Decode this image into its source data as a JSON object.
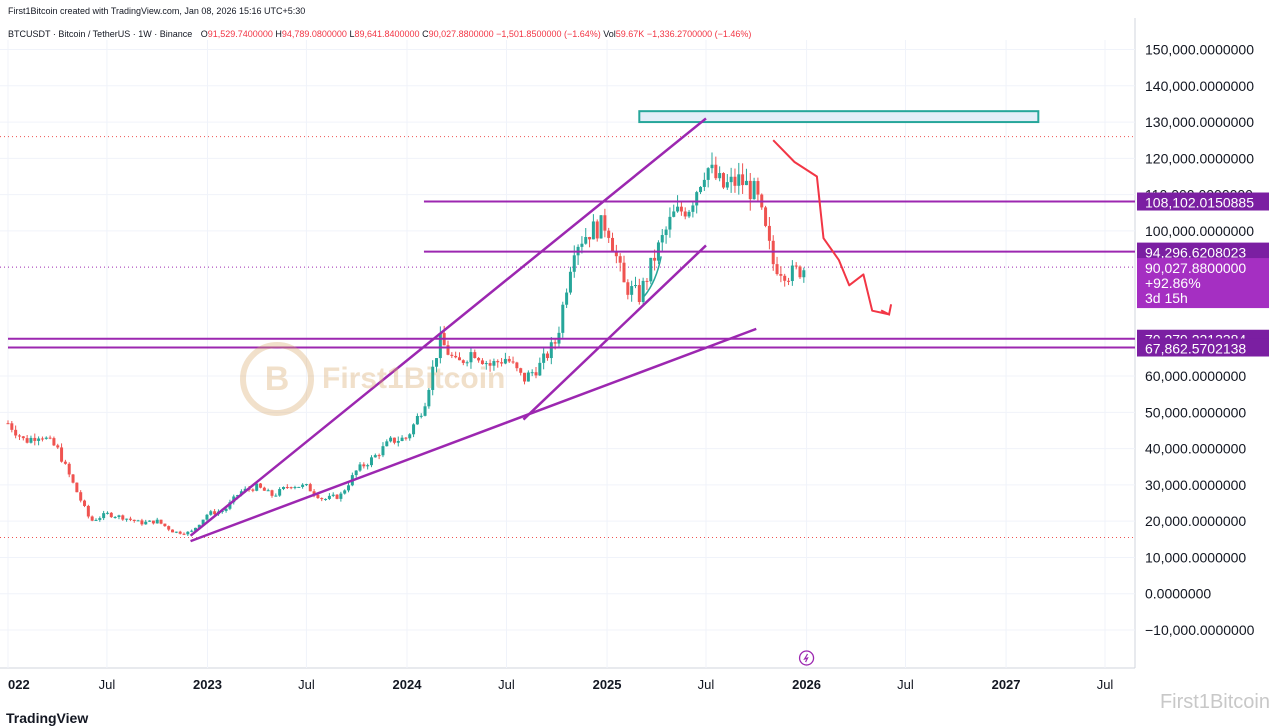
{
  "header": {
    "created_by": "First1Bitcoin created with TradingView.com, Jan 08, 2026 15:16 UTC+5:30"
  },
  "ohlc": {
    "symbol": "BTCUSDT · Bitcoin / TetherUS · 1W · Binance",
    "o_label": "O",
    "o_value": "91,529.7400000",
    "h_label": "H",
    "h_value": "94,789.0800000",
    "l_label": "L",
    "l_value": "89,641.8400000",
    "c_label": "C",
    "c_value": "90,027.8800000",
    "change": "−1,501.8500000 (−1.64%)",
    "vol_label": "Vol",
    "vol_value": "59.67K",
    "vol_change": "−1,336.2700000 (−1.46%)"
  },
  "watermark": {
    "text": "First1Bitcoin",
    "logo": "B"
  },
  "footer": {
    "brand": "TradingView",
    "watermark": "First1Bitcoin"
  },
  "colors": {
    "up": "#26a69a",
    "down": "#ef5350",
    "purple": "#9c27b0",
    "tag_bg": "#7b1fa2",
    "price_tag": "#a52fc2",
    "resistance": "#26a69a",
    "arrow": "#f23645"
  },
  "chart_data": {
    "type": "candlestick",
    "title": "BTCUSDT · Bitcoin / TetherUS · 1W · Binance",
    "ylim": [
      -15000,
      158000
    ],
    "y_ticks": [
      "150,000.0000000",
      "140,000.0000000",
      "130,000.0000000",
      "120,000.0000000",
      "110,000.0000000",
      "100,000.0000000",
      "60,000.0000000",
      "50,000.0000000",
      "40,000.0000000",
      "30,000.0000000",
      "20,000.0000000",
      "10,000.0000000",
      "0.0000000",
      "−10,000.0000000"
    ],
    "y_tick_values": [
      150000,
      140000,
      130000,
      120000,
      110000,
      100000,
      60000,
      50000,
      40000,
      30000,
      20000,
      10000,
      0,
      -10000
    ],
    "x_ticks": [
      {
        "label": "022",
        "date": "2022-01-01",
        "bold": true
      },
      {
        "label": "Jul",
        "date": "2022-07-01",
        "bold": false
      },
      {
        "label": "2023",
        "date": "2023-01-01",
        "bold": true
      },
      {
        "label": "Jul",
        "date": "2023-07-01",
        "bold": false
      },
      {
        "label": "2024",
        "date": "2024-01-01",
        "bold": true
      },
      {
        "label": "Jul",
        "date": "2024-07-01",
        "bold": false
      },
      {
        "label": "2025",
        "date": "2025-01-01",
        "bold": true
      },
      {
        "label": "Jul",
        "date": "2025-07-01",
        "bold": false
      },
      {
        "label": "2026",
        "date": "2026-01-01",
        "bold": true
      },
      {
        "label": "Jul",
        "date": "2026-07-01",
        "bold": false
      },
      {
        "label": "2027",
        "date": "2027-01-01",
        "bold": true
      },
      {
        "label": "Jul",
        "date": "2027-07-01",
        "bold": false
      }
    ],
    "price_path": [
      [
        "2022-01-01",
        47000
      ],
      [
        "2022-02-01",
        42000
      ],
      [
        "2022-03-01",
        44000
      ],
      [
        "2022-04-01",
        40000
      ],
      [
        "2022-05-01",
        30000
      ],
      [
        "2022-06-01",
        20000
      ],
      [
        "2022-07-01",
        22000
      ],
      [
        "2022-08-01",
        21000
      ],
      [
        "2022-09-01",
        19500
      ],
      [
        "2022-10-01",
        20000
      ],
      [
        "2022-11-01",
        17000
      ],
      [
        "2022-12-01",
        16800
      ],
      [
        "2023-01-01",
        22000
      ],
      [
        "2023-02-01",
        23000
      ],
      [
        "2023-03-01",
        28000
      ],
      [
        "2023-04-01",
        29500
      ],
      [
        "2023-05-01",
        27000
      ],
      [
        "2023-06-01",
        30000
      ],
      [
        "2023-07-01",
        29500
      ],
      [
        "2023-08-01",
        26000
      ],
      [
        "2023-09-01",
        27000
      ],
      [
        "2023-10-01",
        34000
      ],
      [
        "2023-11-01",
        37500
      ],
      [
        "2023-12-01",
        42000
      ],
      [
        "2024-01-01",
        43000
      ],
      [
        "2024-02-01",
        52000
      ],
      [
        "2024-03-01",
        70000
      ],
      [
        "2024-04-01",
        63000
      ],
      [
        "2024-05-01",
        67000
      ],
      [
        "2024-06-01",
        63000
      ],
      [
        "2024-07-01",
        65000
      ],
      [
        "2024-08-01",
        59000
      ],
      [
        "2024-09-01",
        63000
      ],
      [
        "2024-10-01",
        70000
      ],
      [
        "2024-11-01",
        96000
      ],
      [
        "2024-12-01",
        100000
      ],
      [
        "2025-01-01",
        102000
      ],
      [
        "2025-02-01",
        85000
      ],
      [
        "2025-03-01",
        82000
      ],
      [
        "2025-04-01",
        94000
      ],
      [
        "2025-05-01",
        104000
      ],
      [
        "2025-06-01",
        107000
      ],
      [
        "2025-07-01",
        118000
      ],
      [
        "2025-08-01",
        112000
      ],
      [
        "2025-09-01",
        114000
      ],
      [
        "2025-10-01",
        110000
      ],
      [
        "2025-11-01",
        91000
      ],
      [
        "2025-12-01",
        88000
      ],
      [
        "2026-01-01",
        90028
      ]
    ],
    "horizontal_levels": [
      {
        "label": "108,102.0150885",
        "value": 108102.0150885
      },
      {
        "label": "94,296.6208023",
        "value": 94296.6208023
      },
      {
        "label": "70,279.2213384",
        "value": 70279.2213384
      },
      {
        "label": "67,862.5702138",
        "value": 67862.5702138
      }
    ],
    "last_price": {
      "value_label": "90,027.8800000",
      "change_label": "+92.86%",
      "countdown": "3d 15h",
      "value": 90027.88
    },
    "prev_low_level": 15500,
    "ath_level": 126000,
    "resistance_zone": {
      "from": "2025-03-01",
      "to": "2027-03-01",
      "low": 130000,
      "high": 133000
    }
  }
}
